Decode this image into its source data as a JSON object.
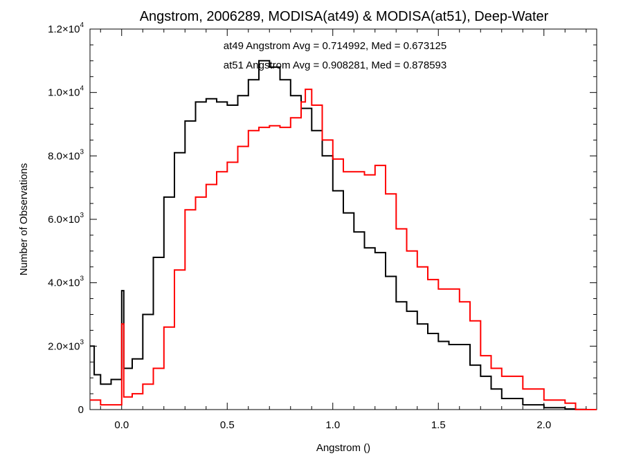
{
  "chart_data": {
    "type": "line",
    "title": "Angstrom, 2006289, MODISA(at49) & MODISA(at51), Deep-Water",
    "xlabel": "Angstrom ()",
    "ylabel": "Number of Observations",
    "xlim": [
      -0.15,
      2.25
    ],
    "ylim": [
      0,
      12000
    ],
    "x_ticks": [
      {
        "value": 0.0,
        "label": "0.0"
      },
      {
        "value": 0.5,
        "label": "0.5"
      },
      {
        "value": 1.0,
        "label": "1.0"
      },
      {
        "value": 1.5,
        "label": "1.5"
      },
      {
        "value": 2.0,
        "label": "2.0"
      }
    ],
    "y_ticks": [
      {
        "value": 0,
        "mant": "0",
        "exp": ""
      },
      {
        "value": 2000,
        "mant": "2.0×10",
        "exp": "3"
      },
      {
        "value": 4000,
        "mant": "4.0×10",
        "exp": "3"
      },
      {
        "value": 6000,
        "mant": "6.0×10",
        "exp": "3"
      },
      {
        "value": 8000,
        "mant": "8.0×10",
        "exp": "3"
      },
      {
        "value": 10000,
        "mant": "1.0×10",
        "exp": "4"
      },
      {
        "value": 12000,
        "mant": "1.2×10",
        "exp": "4"
      }
    ],
    "grid": false,
    "annotations": [
      {
        "text": "at49 Angstrom Avg = 0.714992, Med = 0.673125",
        "color": "#000000"
      },
      {
        "text": "at51 Angstrom Avg = 0.908281, Med = 0.878593",
        "color": "#ff0000"
      }
    ],
    "series": [
      {
        "color": "#000000",
        "x": [
          -0.15,
          -0.13,
          -0.1,
          -0.05,
          0.0,
          0.0,
          0.01,
          0.05,
          0.1,
          0.15,
          0.2,
          0.25,
          0.3,
          0.35,
          0.4,
          0.45,
          0.5,
          0.55,
          0.6,
          0.65,
          0.7,
          0.75,
          0.8,
          0.85,
          0.9,
          0.95,
          1.0,
          1.05,
          1.1,
          1.15,
          1.2,
          1.25,
          1.3,
          1.35,
          1.4,
          1.45,
          1.5,
          1.55,
          1.6,
          1.65,
          1.7,
          1.75,
          1.8,
          1.9,
          2.0,
          2.1,
          2.15,
          2.2,
          2.25
        ],
        "y": [
          2000,
          1100,
          800,
          950,
          1200,
          3750,
          1300,
          1600,
          3000,
          4800,
          6700,
          8100,
          9100,
          9700,
          9800,
          9700,
          9600,
          9900,
          10400,
          11000,
          10800,
          10400,
          9900,
          9500,
          8800,
          8000,
          6900,
          6200,
          5600,
          5100,
          4950,
          4200,
          3400,
          3100,
          2700,
          2400,
          2150,
          2050,
          2050,
          1400,
          1050,
          650,
          350,
          150,
          60,
          20,
          5,
          0,
          0
        ]
      },
      {
        "color": "#ff0000",
        "x": [
          -0.15,
          -0.1,
          -0.05,
          0.0,
          0.0,
          0.01,
          0.05,
          0.1,
          0.15,
          0.2,
          0.25,
          0.3,
          0.35,
          0.4,
          0.45,
          0.5,
          0.55,
          0.6,
          0.65,
          0.7,
          0.75,
          0.8,
          0.85,
          0.87,
          0.9,
          0.95,
          1.0,
          1.05,
          1.1,
          1.15,
          1.2,
          1.25,
          1.3,
          1.35,
          1.4,
          1.45,
          1.5,
          1.55,
          1.6,
          1.65,
          1.7,
          1.75,
          1.8,
          1.9,
          2.0,
          2.1,
          2.15,
          2.2,
          2.25
        ],
        "y": [
          300,
          150,
          150,
          250,
          2700,
          400,
          500,
          800,
          1300,
          2600,
          4400,
          6300,
          6700,
          7100,
          7500,
          7800,
          8300,
          8800,
          8900,
          8950,
          8900,
          9200,
          9700,
          10100,
          9600,
          8500,
          7900,
          7500,
          7500,
          7400,
          7700,
          6800,
          5700,
          5000,
          4500,
          4100,
          3800,
          3800,
          3400,
          2800,
          1700,
          1300,
          1050,
          650,
          300,
          200,
          0,
          0,
          0
        ]
      }
    ]
  }
}
